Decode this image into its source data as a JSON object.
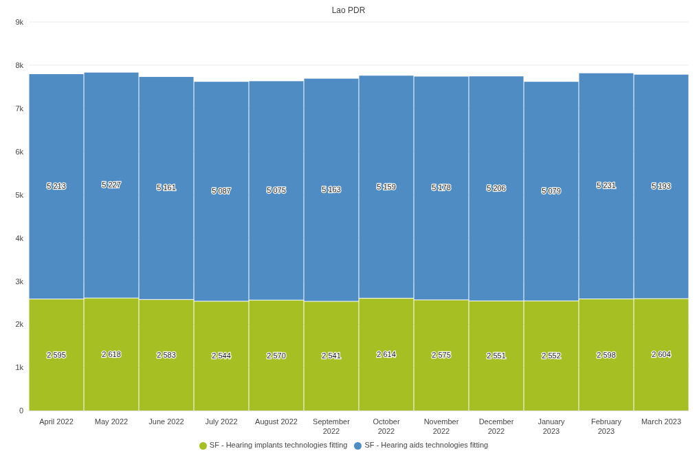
{
  "chart_data": {
    "type": "bar",
    "title": "Lao PDR",
    "stacked": true,
    "categories": [
      "April 2022",
      "May 2022",
      "June 2022",
      "July 2022",
      "August 2022",
      "September 2022",
      "October 2022",
      "November 2022",
      "December 2022",
      "January 2023",
      "February 2023",
      "March 2023"
    ],
    "series": [
      {
        "name": "SF - Hearing implants technologies fitting",
        "color": "#a6bf22",
        "values": [
          2595,
          2618,
          2583,
          2544,
          2570,
          2541,
          2614,
          2575,
          2551,
          2552,
          2598,
          2604
        ],
        "value_labels": [
          "2 595",
          "2 618",
          "2 583",
          "2 544",
          "2 570",
          "2 541",
          "2 614",
          "2 575",
          "2 551",
          "2 552",
          "2 598",
          "2 604"
        ]
      },
      {
        "name": "SF - Hearing aids technologies fitting",
        "color": "#4f8cc4",
        "values": [
          5213,
          5227,
          5161,
          5087,
          5075,
          5163,
          5159,
          5178,
          5206,
          5079,
          5231,
          5193
        ],
        "value_labels": [
          "5 213",
          "5 227",
          "5 161",
          "5 087",
          "5 075",
          "5 163",
          "5 159",
          "5 178",
          "5 206",
          "5 079",
          "5 231",
          "5 193"
        ]
      }
    ],
    "ylim": [
      0,
      9000
    ],
    "yticks": [
      0,
      {
        "value": 1000,
        "label": "1k"
      },
      {
        "value": 2000,
        "label": "2k"
      },
      {
        "value": 3000,
        "label": "3k"
      },
      {
        "value": 4000,
        "label": "4k"
      },
      {
        "value": 5000,
        "label": "5k"
      },
      {
        "value": 6000,
        "label": "6k"
      },
      {
        "value": 7000,
        "label": "7k"
      },
      {
        "value": 8000,
        "label": "8k"
      },
      {
        "value": 9000,
        "label": "9k"
      }
    ],
    "grid": "y",
    "legend": "bottom"
  }
}
